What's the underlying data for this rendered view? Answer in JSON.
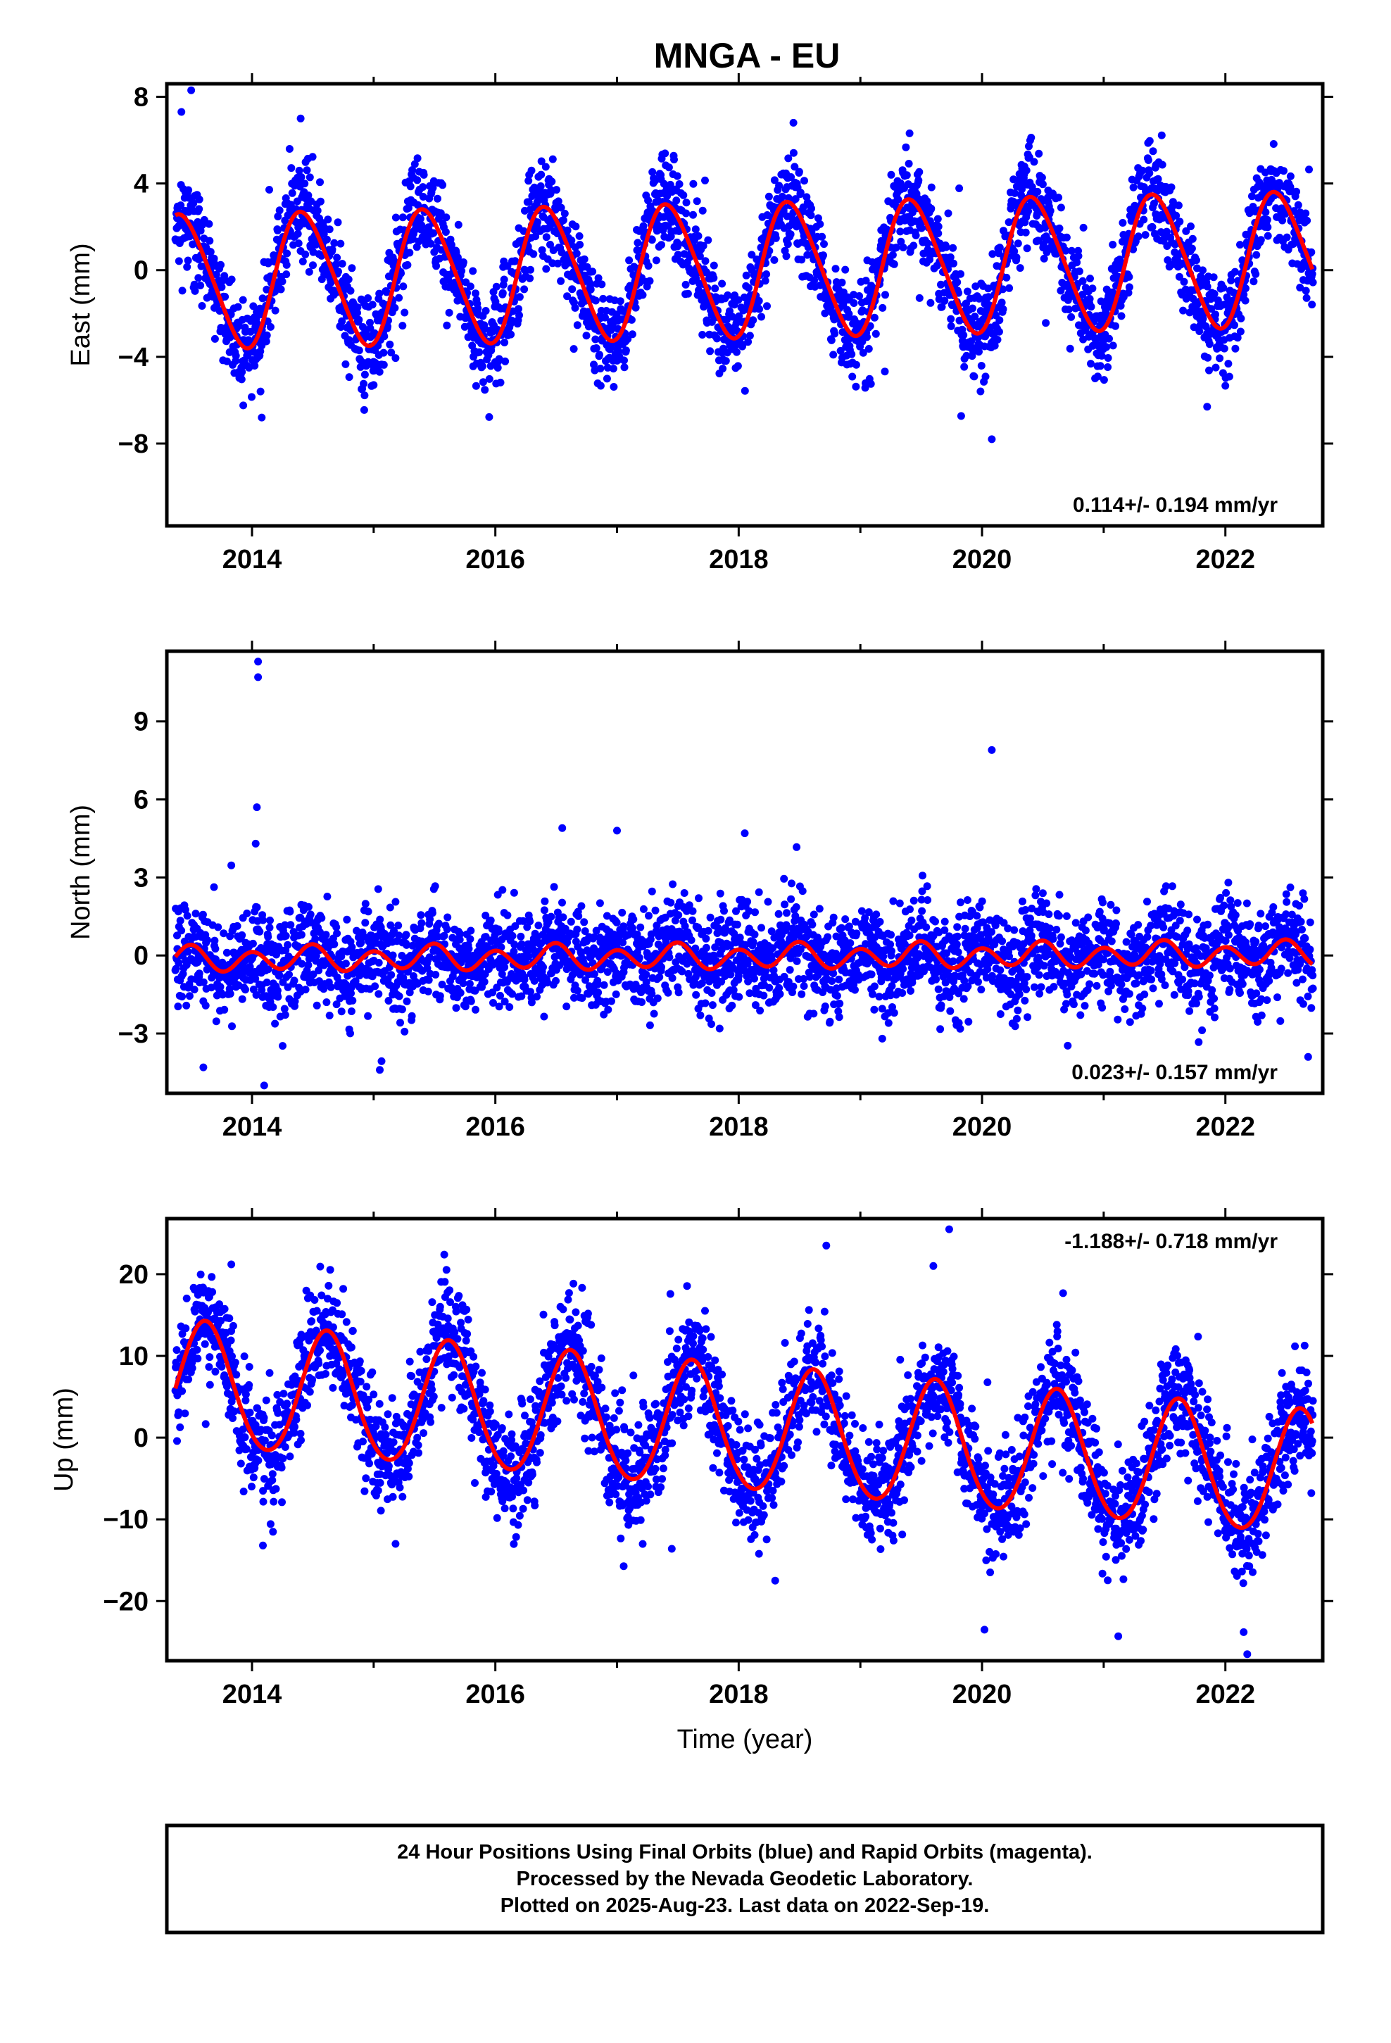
{
  "title": "MNGA - EU",
  "footer": {
    "lines": [
      "24 Hour Positions Using Final Orbits (blue) and Rapid Orbits (magenta).",
      "Processed by the Nevada Geodetic Laboratory.",
      "Plotted on 2025-Aug-23. Last data on 2022-Sep-19."
    ]
  },
  "colors": {
    "points": "#0000ff",
    "model": "#ff0000",
    "frame": "#000000"
  },
  "chart_data": [
    {
      "type": "scatter",
      "title": "MNGA - EU",
      "component": "East",
      "ylabel": "East (mm)",
      "xlabel": "",
      "xlim": [
        2013.3,
        2022.8
      ],
      "ylim": [
        -11.8,
        8.6
      ],
      "x_ticks": [
        2014,
        2016,
        2018,
        2020,
        2022
      ],
      "x_tick_labels": [
        "2014",
        "2016",
        "2018",
        "2020",
        "2022"
      ],
      "y_ticks": [
        -8,
        -4,
        0,
        4,
        8
      ],
      "y_tick_labels": [
        "−8",
        "−4",
        "0",
        "4",
        "8"
      ],
      "rate_label": "0.114+/- 0.194 mm/yr",
      "rate_position": "bottom-right",
      "model": {
        "mean": 0.0,
        "trend_mm_per_yr": 0.114,
        "ref_year": 2018.0,
        "annual_amp": 3.05,
        "annual_peak_phase": 0.43,
        "semiannual_amp": 0.35,
        "semiannual_peak_phase": 0.3
      },
      "scatter": {
        "start": 2013.37,
        "end": 2022.72,
        "noise_sd": 1.1,
        "seed": 11
      },
      "outliers": [
        [
          2013.42,
          7.3
        ],
        [
          2013.5,
          8.3
        ],
        [
          2014.07,
          -5.6
        ],
        [
          2014.08,
          -6.8
        ],
        [
          2015.0,
          -5.3
        ],
        [
          2020.08,
          -7.8
        ],
        [
          2021.85,
          -6.3
        ],
        [
          2014.4,
          7.0
        ],
        [
          2018.45,
          6.8
        ]
      ],
      "series": [
        {
          "name": "Final Orbits (blue)",
          "role": "points"
        },
        {
          "name": "",
          "role": "model"
        }
      ]
    },
    {
      "type": "scatter",
      "component": "North",
      "ylabel": "North (mm)",
      "xlabel": "",
      "xlim": [
        2013.3,
        2022.8
      ],
      "ylim": [
        -5.3,
        11.7
      ],
      "x_ticks": [
        2014,
        2016,
        2018,
        2020,
        2022
      ],
      "x_tick_labels": [
        "2014",
        "2016",
        "2018",
        "2020",
        "2022"
      ],
      "y_ticks": [
        -3,
        0,
        3,
        6,
        9
      ],
      "y_tick_labels": [
        "−3",
        "0",
        "3",
        "6",
        "9"
      ],
      "rate_label": "0.023+/- 0.157 mm/yr",
      "rate_position": "bottom-right",
      "model": {
        "mean": -0.05,
        "trend_mm_per_yr": 0.023,
        "ref_year": 2018.0,
        "annual_amp": 0.15,
        "annual_peak_phase": 0.45,
        "semiannual_amp": 0.42,
        "semiannual_peak_phase": 0.0
      },
      "scatter": {
        "start": 2013.37,
        "end": 2022.72,
        "noise_sd": 0.95,
        "seed": 22
      },
      "outliers": [
        [
          2014.05,
          11.3
        ],
        [
          2014.05,
          10.7
        ],
        [
          2014.04,
          5.7
        ],
        [
          2014.03,
          4.3
        ],
        [
          2020.08,
          7.9
        ],
        [
          2016.55,
          4.9
        ],
        [
          2017.0,
          4.8
        ],
        [
          2018.05,
          4.7
        ],
        [
          2013.6,
          -4.3
        ],
        [
          2014.1,
          -5.0
        ],
        [
          2015.05,
          -4.4
        ],
        [
          2019.18,
          -3.2
        ],
        [
          2022.68,
          -3.9
        ]
      ],
      "series": [
        {
          "name": "Final Orbits (blue)",
          "role": "points"
        },
        {
          "name": "",
          "role": "model"
        }
      ]
    },
    {
      "type": "scatter",
      "component": "Up",
      "ylabel": "Up (mm)",
      "xlabel": "Time (year)",
      "xlim": [
        2013.3,
        2022.8
      ],
      "ylim": [
        -27.3,
        26.8
      ],
      "x_ticks": [
        2014,
        2016,
        2018,
        2020,
        2022
      ],
      "x_tick_labels": [
        "2014",
        "2016",
        "2018",
        "2020",
        "2022"
      ],
      "y_ticks": [
        -20,
        -10,
        0,
        10,
        20
      ],
      "y_tick_labels": [
        "−20",
        "−10",
        "0",
        "10",
        "20"
      ],
      "rate_label": "-1.188+/- 0.718 mm/yr",
      "rate_position": "top-right",
      "model": {
        "mean": 1.0,
        "trend_mm_per_yr": -1.188,
        "ref_year": 2018.0,
        "annual_amp": 7.6,
        "annual_peak_phase": 0.62,
        "semiannual_amp": 0.5,
        "semiannual_peak_phase": 0.1
      },
      "scatter": {
        "start": 2013.37,
        "end": 2022.72,
        "noise_sd": 3.4,
        "seed": 33
      },
      "outliers": [
        [
          2019.73,
          25.5
        ],
        [
          2018.72,
          23.5
        ],
        [
          2015.58,
          22.4
        ],
        [
          2013.83,
          21.2
        ],
        [
          2019.6,
          21.0
        ],
        [
          2014.09,
          -13.2
        ],
        [
          2015.18,
          -13.0
        ],
        [
          2017.45,
          -13.6
        ],
        [
          2018.3,
          -17.5
        ],
        [
          2020.02,
          -23.5
        ],
        [
          2021.12,
          -24.3
        ],
        [
          2022.18,
          -26.5
        ],
        [
          2022.15,
          -23.8
        ]
      ],
      "series": [
        {
          "name": "Final Orbits (blue)",
          "role": "points"
        },
        {
          "name": "",
          "role": "model"
        }
      ]
    }
  ]
}
